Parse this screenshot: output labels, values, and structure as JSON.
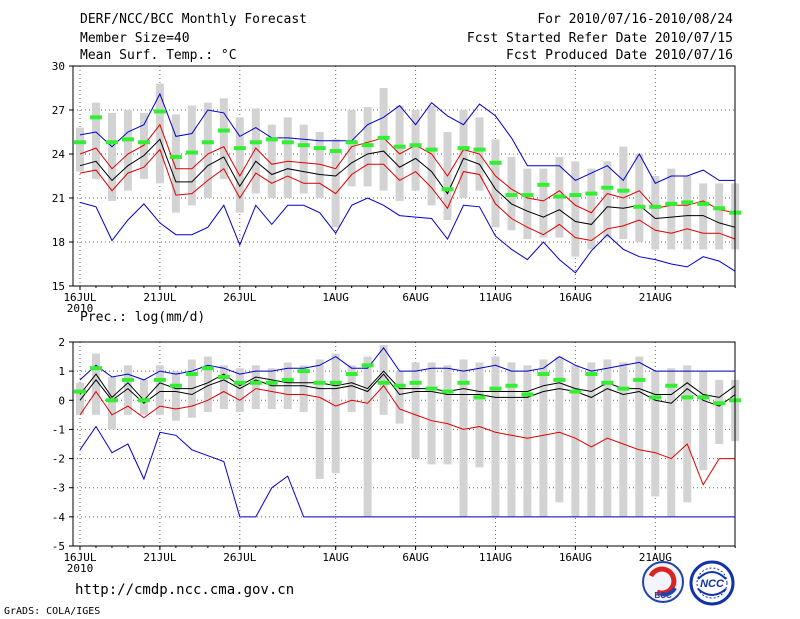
{
  "header": {
    "title": "DERF/NCC/BCC Monthly Forecast",
    "member_size": "Member Size=40",
    "variable1": "Mean Surf. Temp.: °C",
    "period": "For 2010/07/16-2010/08/24",
    "started": "Fcst Started Refer Date 2010/07/15",
    "produced": "Fcst Produced Date 2010/07/16"
  },
  "panel2_label": "Prec.: log(mm/d)",
  "url": "http://cmdp.ncc.cma.gov.cn",
  "credit": "GrADS: COLA/IGES",
  "logos": {
    "bcc": "BCC",
    "ncc": "NCC"
  },
  "colors": {
    "bar": "#d3d3d3",
    "mean": "#000000",
    "spread": "#e00000",
    "extreme": "#0000cc",
    "obs": "#33ee33"
  },
  "chart_data": [
    {
      "type": "line",
      "title": "Mean Surf. Temp.: °C",
      "days": 40,
      "x_ticks": [
        {
          "day": 0,
          "label": "16JUL",
          "sub": "2010"
        },
        {
          "day": 5,
          "label": "21JUL"
        },
        {
          "day": 10,
          "label": "26JUL"
        },
        {
          "day": 16,
          "label": "1AUG"
        },
        {
          "day": 21,
          "label": "6AUG"
        },
        {
          "day": 26,
          "label": "11AUG"
        },
        {
          "day": 31,
          "label": "16AUG"
        },
        {
          "day": 36,
          "label": "21AUG"
        }
      ],
      "ylim": [
        15,
        30
      ],
      "yticks": [
        15,
        18,
        21,
        24,
        27,
        30
      ],
      "series": [
        {
          "name": "max",
          "color": "#0000cc",
          "values": [
            25.3,
            25.5,
            24.5,
            25.5,
            26.0,
            28.1,
            25.2,
            25.4,
            27.0,
            26.8,
            25.2,
            25.8,
            25.1,
            25.1,
            25.0,
            24.9,
            24.9,
            24.9,
            26.0,
            26.5,
            27.3,
            26.0,
            27.5,
            26.6,
            26.0,
            27.4,
            26.6,
            25.1,
            23.2,
            23.2,
            23.2,
            22.2,
            22.7,
            23.2,
            22.2,
            24.0,
            22.0,
            22.5,
            22.5,
            22.9,
            22.2,
            22.2
          ]
        },
        {
          "name": "upper",
          "color": "#e00000",
          "values": [
            24.0,
            24.4,
            23.0,
            24.0,
            24.6,
            26.0,
            23.0,
            23.0,
            24.0,
            24.5,
            22.5,
            24.4,
            23.3,
            23.5,
            23.4,
            23.3,
            23.0,
            24.5,
            24.8,
            25.1,
            24.0,
            24.6,
            24.0,
            22.5,
            24.3,
            24.0,
            22.5,
            21.6,
            21.0,
            20.8,
            21.5,
            20.5,
            20.0,
            21.3,
            21.0,
            21.5,
            20.3,
            20.5,
            20.5,
            20.8,
            20.2,
            20.0
          ]
        },
        {
          "name": "mean",
          "color": "#000000",
          "values": [
            23.2,
            23.5,
            22.2,
            23.2,
            23.9,
            25.0,
            22.1,
            22.1,
            23.2,
            23.8,
            21.8,
            23.5,
            22.6,
            23.0,
            22.8,
            22.6,
            22.5,
            23.4,
            24.0,
            24.2,
            23.1,
            23.7,
            22.8,
            21.3,
            23.7,
            23.3,
            21.6,
            20.6,
            20.1,
            19.7,
            20.2,
            19.4,
            19.2,
            20.4,
            20.3,
            20.5,
            19.6,
            19.7,
            19.8,
            19.8,
            19.3,
            19.0
          ]
        },
        {
          "name": "lower",
          "color": "#e00000",
          "values": [
            22.7,
            22.9,
            21.5,
            22.7,
            23.1,
            24.3,
            21.2,
            21.3,
            22.2,
            23.0,
            21.0,
            22.7,
            22.0,
            22.5,
            22.0,
            22.0,
            21.3,
            22.6,
            23.3,
            23.3,
            22.2,
            22.8,
            21.7,
            20.3,
            22.8,
            22.6,
            20.6,
            19.6,
            19.0,
            18.5,
            19.2,
            18.3,
            18.1,
            18.9,
            19.1,
            19.5,
            18.8,
            18.6,
            18.9,
            18.6,
            18.6,
            18.2
          ]
        },
        {
          "name": "min",
          "color": "#0000cc",
          "values": [
            20.7,
            20.4,
            18.1,
            19.5,
            20.6,
            19.3,
            18.5,
            18.5,
            19.0,
            20.5,
            17.8,
            20.5,
            19.2,
            20.5,
            20.5,
            20.0,
            18.6,
            20.5,
            21.0,
            20.5,
            19.8,
            19.7,
            19.6,
            18.2,
            20.5,
            20.4,
            18.4,
            17.5,
            16.8,
            18.0,
            16.8,
            15.9,
            17.4,
            18.5,
            17.5,
            17.0,
            16.8,
            16.5,
            16.3,
            17.0,
            16.7,
            16.0
          ]
        },
        {
          "name": "obs",
          "color": "#33ee33",
          "values": [
            24.8,
            26.5,
            24.8,
            25.0,
            24.8,
            26.9,
            23.8,
            24.1,
            24.8,
            25.6,
            24.4,
            24.8,
            25.0,
            24.8,
            24.6,
            24.4,
            24.2,
            24.8,
            24.6,
            25.1,
            24.5,
            24.6,
            24.3,
            21.6,
            24.4,
            24.3,
            23.4,
            21.2,
            21.2,
            21.9,
            21.1,
            21.2,
            21.3,
            21.7,
            21.5,
            20.4,
            20.4,
            20.6,
            20.7,
            20.6,
            20.3,
            20.0
          ]
        },
        {
          "name": "box_high",
          "values": [
            25.8,
            27.5,
            26.8,
            27.0,
            26.8,
            28.8,
            26.7,
            27.3,
            27.5,
            27.8,
            26.5,
            27.1,
            26.0,
            26.5,
            26.0,
            25.5,
            25.0,
            27.0,
            27.2,
            28.5,
            27.3,
            27.0,
            27.3,
            25.5,
            27.0,
            26.5,
            25.0,
            23.8,
            23.0,
            23.0,
            23.8,
            23.5,
            23.0,
            23.5,
            24.5,
            24.0,
            22.5,
            23.0,
            22.5,
            22.0,
            22.0,
            22.0
          ]
        },
        {
          "name": "box_low",
          "values": [
            22.8,
            22.3,
            20.8,
            21.5,
            22.3,
            22.0,
            20.0,
            20.5,
            21.0,
            22.3,
            20.0,
            21.3,
            21.0,
            21.0,
            21.3,
            21.0,
            19.0,
            21.8,
            21.8,
            21.5,
            20.8,
            21.5,
            20.5,
            19.5,
            21.0,
            21.5,
            19.0,
            18.8,
            18.2,
            18.3,
            18.3,
            17.0,
            17.5,
            18.3,
            18.2,
            18.0,
            17.5,
            17.5,
            17.5,
            17.5,
            17.5,
            17.5
          ]
        }
      ]
    },
    {
      "type": "line",
      "title": "Prec.: log(mm/d)",
      "days": 40,
      "x_ticks": [
        {
          "day": 0,
          "label": "16JUL",
          "sub": "2010"
        },
        {
          "day": 5,
          "label": "21JUL"
        },
        {
          "day": 10,
          "label": "26JUL"
        },
        {
          "day": 16,
          "label": "1AUG"
        },
        {
          "day": 21,
          "label": "6AUG"
        },
        {
          "day": 26,
          "label": "11AUG"
        },
        {
          "day": 31,
          "label": "16AUG"
        },
        {
          "day": 36,
          "label": "21AUG"
        }
      ],
      "ylim": [
        -5,
        2
      ],
      "yticks": [
        -5,
        -4,
        -3,
        -2,
        -1,
        0,
        1,
        2
      ],
      "series": [
        {
          "name": "max",
          "color": "#0000cc",
          "values": [
            0.7,
            1.2,
            0.8,
            0.9,
            0.7,
            1.0,
            0.9,
            1.0,
            1.2,
            1.1,
            0.9,
            1.0,
            1.0,
            1.1,
            1.1,
            1.2,
            1.5,
            1.1,
            1.1,
            1.8,
            1.0,
            1.0,
            1.1,
            1.1,
            1.0,
            1.1,
            1.2,
            1.0,
            1.0,
            1.1,
            1.5,
            1.2,
            1.0,
            1.1,
            1.2,
            1.3,
            1.0,
            1.0,
            1.0,
            1.0,
            1.0,
            1.0
          ]
        },
        {
          "name": "upper",
          "color": "#000000",
          "values": [
            0.2,
            0.9,
            0.1,
            0.6,
            0.0,
            0.6,
            0.4,
            0.4,
            0.6,
            0.9,
            0.5,
            0.8,
            0.7,
            0.6,
            0.6,
            0.6,
            0.5,
            0.6,
            0.4,
            1.0,
            0.4,
            0.4,
            0.4,
            0.3,
            0.4,
            0.3,
            0.3,
            0.3,
            0.3,
            0.5,
            0.6,
            0.4,
            0.3,
            0.6,
            0.4,
            0.4,
            0.2,
            0.2,
            0.6,
            0.2,
            0.1,
            0.5
          ]
        },
        {
          "name": "mean",
          "color": "#000000",
          "values": [
            0.0,
            0.7,
            0.0,
            0.4,
            -0.1,
            0.3,
            0.3,
            0.2,
            0.5,
            0.7,
            0.4,
            0.7,
            0.5,
            0.5,
            0.5,
            0.4,
            0.4,
            0.5,
            0.3,
            0.9,
            0.2,
            0.3,
            0.3,
            0.2,
            0.2,
            0.2,
            0.1,
            0.1,
            0.1,
            0.3,
            0.4,
            0.3,
            0.1,
            0.4,
            0.2,
            0.3,
            0.0,
            -0.1,
            0.4,
            0.0,
            -0.2,
            0.2
          ]
        },
        {
          "name": "lower",
          "color": "#e00000",
          "values": [
            -0.5,
            0.3,
            -0.5,
            -0.2,
            -0.6,
            -0.2,
            -0.3,
            -0.2,
            0.0,
            0.3,
            0.0,
            0.4,
            0.3,
            0.2,
            0.2,
            0.1,
            -0.2,
            0.0,
            -0.1,
            0.5,
            -0.3,
            -0.5,
            -0.7,
            -0.8,
            -1.0,
            -0.9,
            -1.1,
            -1.2,
            -1.3,
            -1.2,
            -1.1,
            -1.3,
            -1.6,
            -1.3,
            -1.5,
            -1.7,
            -1.8,
            -2.0,
            -1.5,
            -2.9,
            -2.0,
            -2.0
          ]
        },
        {
          "name": "min",
          "color": "#0000cc",
          "values": [
            -1.7,
            -0.9,
            -1.8,
            -1.5,
            -2.7,
            -1.1,
            -1.2,
            -1.7,
            -1.9,
            -2.1,
            -4.0,
            -4.0,
            -3.0,
            -2.6,
            -4.0,
            -4.0,
            -4.0,
            -4.0,
            -4.0,
            -4.0,
            -4.0,
            -4.0,
            -4.0,
            -4.0,
            -4.0,
            -4.0,
            -4.0,
            -4.0,
            -4.0,
            -4.0,
            -4.0,
            -4.0,
            -4.0,
            -4.0,
            -4.0,
            -4.0,
            -4.0,
            -4.0,
            -4.0,
            -4.0,
            -4.0,
            -4.0
          ]
        },
        {
          "name": "obs",
          "color": "#33ee33",
          "values": [
            0.3,
            1.1,
            0.0,
            0.7,
            0.0,
            0.7,
            0.5,
            0.9,
            1.1,
            0.8,
            0.6,
            0.6,
            0.6,
            0.7,
            1.0,
            0.6,
            0.6,
            0.9,
            1.2,
            0.6,
            0.5,
            0.6,
            0.4,
            0.3,
            0.6,
            0.1,
            0.4,
            0.5,
            0.2,
            0.9,
            0.7,
            0.3,
            0.9,
            0.6,
            0.4,
            0.7,
            0.1,
            0.5,
            0.1,
            0.1,
            -0.1,
            0.0
          ]
        },
        {
          "name": "box_high",
          "values": [
            0.6,
            1.6,
            0.8,
            1.2,
            0.7,
            1.2,
            1.0,
            1.4,
            1.5,
            1.2,
            1.1,
            1.2,
            1.1,
            1.3,
            1.2,
            1.4,
            1.6,
            1.2,
            1.5,
            1.9,
            1.0,
            1.3,
            1.3,
            1.2,
            1.4,
            1.3,
            1.5,
            1.3,
            1.2,
            1.4,
            1.5,
            1.2,
            1.3,
            1.4,
            1.3,
            1.5,
            1.0,
            1.1,
            1.2,
            1.0,
            0.7,
            0.7
          ]
        },
        {
          "name": "box_low",
          "values": [
            -0.5,
            -0.5,
            -1.0,
            -0.5,
            -0.5,
            -0.5,
            -0.7,
            -0.6,
            -0.4,
            -0.3,
            -0.4,
            -0.3,
            -0.3,
            -0.3,
            -0.4,
            -2.7,
            -2.5,
            -0.4,
            -4.0,
            -0.5,
            -0.8,
            -2.0,
            -2.2,
            -2.2,
            -4.0,
            -2.3,
            -4.0,
            -4.0,
            -4.0,
            -4.0,
            -3.5,
            -4.0,
            -4.0,
            -4.0,
            -4.0,
            -4.0,
            -3.3,
            -4.0,
            -3.5,
            -2.4,
            -1.5,
            -1.4
          ]
        }
      ]
    }
  ]
}
